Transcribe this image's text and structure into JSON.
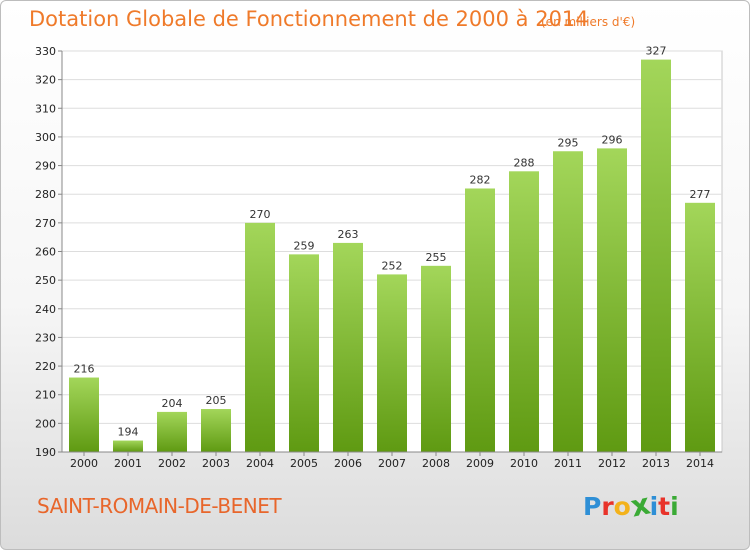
{
  "chart_data": {
    "type": "bar",
    "title": "Dotation Globale de Fonctionnement de 2000 à 2014",
    "subtitle": "(en milliers d'€)",
    "categories": [
      "2000",
      "2001",
      "2002",
      "2003",
      "2004",
      "2005",
      "2006",
      "2007",
      "2008",
      "2009",
      "2010",
      "2011",
      "2012",
      "2013",
      "2014"
    ],
    "values": [
      216,
      194,
      204,
      205,
      270,
      259,
      263,
      252,
      255,
      282,
      288,
      295,
      296,
      327,
      277
    ],
    "ylim": [
      190,
      330
    ],
    "yticks": [
      190,
      200,
      210,
      220,
      230,
      240,
      250,
      260,
      270,
      280,
      290,
      300,
      310,
      320,
      330
    ],
    "grid": true,
    "bar_color": "#7fbf2e"
  },
  "footer": {
    "city": "SAINT-ROMAIN-DE-BENET",
    "logo_letters": [
      "P",
      "r",
      "o",
      "x",
      "i",
      "t",
      "i"
    ],
    "logo_colors": [
      "#2e8fd6",
      "#e8332a",
      "#f3b21b",
      "#3aaa35",
      "#2e8fd6",
      "#e8332a",
      "#3aaa35"
    ]
  }
}
